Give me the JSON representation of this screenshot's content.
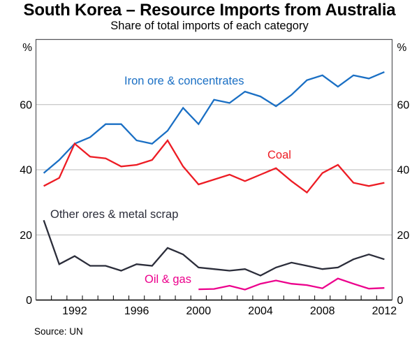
{
  "header": {
    "title": "South Korea – Resource Imports from Australia",
    "subtitle": "Share of total imports of each category"
  },
  "footer": {
    "source": "Source: UN"
  },
  "chart_data": {
    "type": "line",
    "title": "South Korea – Resource Imports from Australia",
    "subtitle": "Share of total imports of each category",
    "unit_left": "%",
    "unit_right": "%",
    "ylim": [
      0,
      80
    ],
    "x_boundaries": [
      1990,
      2013
    ],
    "y_gridlines": [
      20,
      40,
      60
    ],
    "y_axis_labels": [
      "0",
      "20",
      "40",
      "60"
    ],
    "y_axis_values": [
      0,
      20,
      40,
      60
    ],
    "x_axis_labels": [
      "1992",
      "1996",
      "2000",
      "2004",
      "2008",
      "2012"
    ],
    "x_axis_values": [
      1992,
      1996,
      2000,
      2004,
      2008,
      2012
    ],
    "grid": "horizontal-only",
    "legend": "inline-series-labels",
    "x": [
      1990,
      1991,
      1992,
      1993,
      1994,
      1995,
      1996,
      1997,
      1998,
      1999,
      2000,
      2001,
      2002,
      2003,
      2004,
      2005,
      2006,
      2007,
      2008,
      2009,
      2010,
      2011,
      2012
    ],
    "series": [
      {
        "id": "iron-ore",
        "name": "Iron ore & concentrates",
        "color": "#1a6fc4",
        "values": [
          39,
          43,
          48,
          50,
          54,
          54,
          49,
          48,
          52,
          59,
          54,
          61.5,
          60.5,
          64,
          62.5,
          59.5,
          63,
          67.5,
          69,
          65.5,
          69,
          68,
          70
        ]
      },
      {
        "id": "coal",
        "name": "Coal",
        "color": "#ed1c24",
        "values": [
          35,
          37.5,
          48,
          44,
          43.5,
          41,
          41.5,
          43,
          49,
          41,
          35.5,
          37,
          38.5,
          36.5,
          38.5,
          40.5,
          36.5,
          33,
          39,
          41.5,
          36,
          35,
          36
        ]
      },
      {
        "id": "other-ores-metal-scrap",
        "name": "Other ores & metal scrap",
        "color": "#2b2d3a",
        "values": [
          24.5,
          11,
          13.5,
          10.5,
          10.5,
          9,
          11,
          10.5,
          16,
          14,
          10,
          9.5,
          9,
          9.5,
          7.5,
          10,
          11.5,
          10.5,
          9.5,
          10,
          12.5,
          14,
          12.5
        ]
      },
      {
        "id": "oil-gas",
        "name": "Oil & gas",
        "color": "#ec008c",
        "values": [
          null,
          null,
          null,
          null,
          null,
          null,
          null,
          null,
          null,
          null,
          3.3,
          3.4,
          4.4,
          3.2,
          5,
          6,
          5,
          4.6,
          3.6,
          6.6,
          5,
          3.5,
          3.7
        ]
      }
    ]
  }
}
